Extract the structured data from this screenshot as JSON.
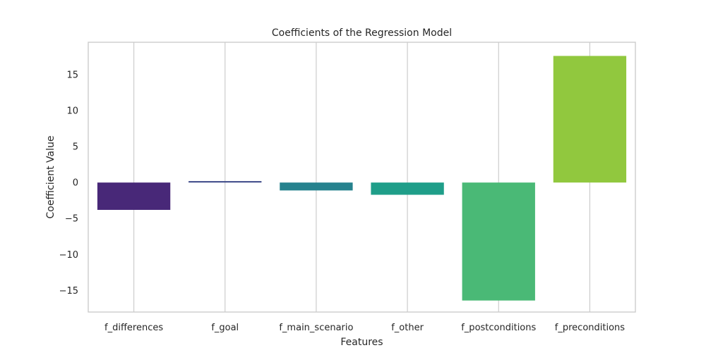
{
  "chart_data": {
    "type": "bar",
    "title": "Coefficients of the Regression Model",
    "xlabel": "Features",
    "ylabel": "Coefficient Value",
    "categories": [
      "f_differences",
      "f_goal",
      "f_main_scenario",
      "f_other",
      "f_postconditions",
      "f_preconditions"
    ],
    "values": [
      -3.8,
      0.2,
      -1.1,
      -1.7,
      -16.4,
      17.6
    ],
    "colors": [
      "#482878",
      "#3e4a89",
      "#26828e",
      "#1f9e89",
      "#4ab976",
      "#91c83e"
    ],
    "ylim": [
      -18.0,
      19.5
    ],
    "yticks": [
      -15,
      -10,
      -5,
      0,
      5,
      10,
      15
    ],
    "ytick_labels": [
      "−15",
      "−10",
      "−5",
      "0",
      "5",
      "10",
      "15"
    ],
    "grid": "vertical",
    "legend": "none"
  }
}
